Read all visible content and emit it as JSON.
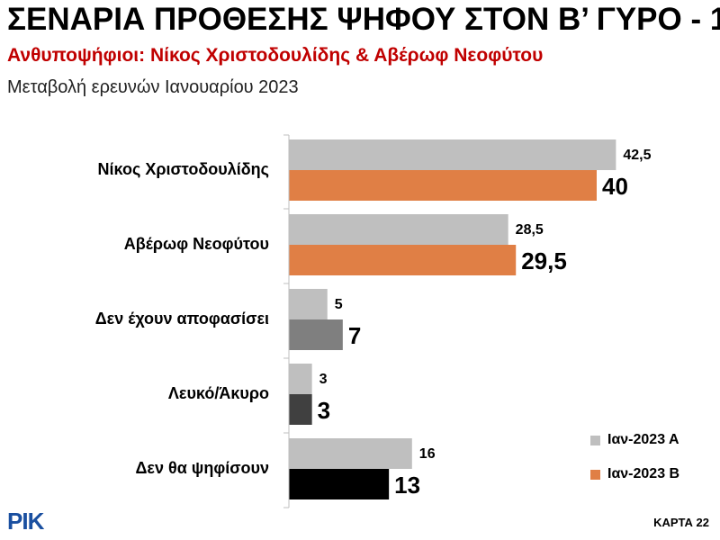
{
  "header": {
    "title": "ΣΕΝΑΡΙΑ ΠΡΟΘΕΣΗΣ ΨΗΦΟΥ ΣΤΟΝ Β’ ΓΥΡΟ - 1",
    "subtitle": "Ανθυποψήφιοι: Νίκος Χριστοδουλίδης & Αβέρωφ Νεοφύτου",
    "subtitle2": "Μεταβολή ερευνών Ιανουαρίου 2023"
  },
  "chart_data": {
    "type": "bar",
    "orientation": "horizontal",
    "categories": [
      "Νίκος Χριστοδουλίδης",
      "Αβέρωφ Νεοφύτου",
      "Δεν έχουν αποφασίσει",
      "Λευκό/Άκυρο",
      "Δεν θα ψηφίσουν"
    ],
    "series": [
      {
        "name": "Ιαν-2023 Α",
        "values": [
          42.5,
          28.5,
          5,
          3,
          16
        ],
        "labels": [
          "42,5",
          "28,5",
          "5",
          "3",
          "16"
        ],
        "color": "#bfbfbf"
      },
      {
        "name": "Ιαν-2023 Β",
        "values": [
          40,
          29.5,
          7,
          3,
          13
        ],
        "labels": [
          "40",
          "29,5",
          "7",
          "3",
          "13"
        ],
        "colors": [
          "#e07f45",
          "#e07f45",
          "#7f7f7f",
          "#404040",
          "#000000"
        ]
      }
    ],
    "xlim": [
      0,
      55
    ],
    "grid": false,
    "legend_position": "bottom-right"
  },
  "legend": {
    "items": [
      {
        "label": "Ιαν-2023 Α",
        "color": "#bfbfbf"
      },
      {
        "label": "Ιαν-2023 Β",
        "color": "#e07f45"
      }
    ]
  },
  "footer": {
    "logo": "ΡΙΚ",
    "page_code": "ΚΑΡΤΑ 22"
  }
}
